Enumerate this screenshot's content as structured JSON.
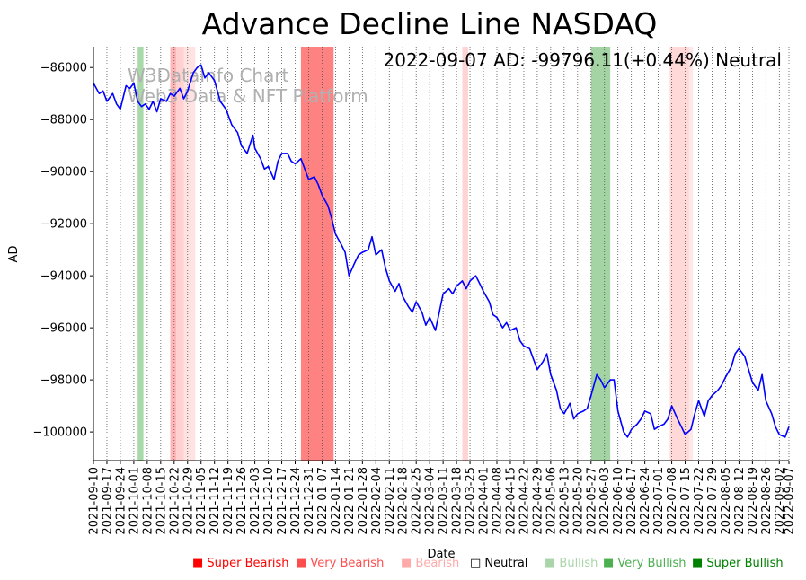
{
  "chart_data": {
    "type": "line",
    "title": "Advance Decline Line NASDAQ",
    "status_text": "2022-09-07 AD: -99796.11(+0.44%) Neutral",
    "watermark": [
      "W3DataInfo Chart",
      "Web3 Data & NFT Platform"
    ],
    "xlabel": "Date",
    "ylabel": "AD",
    "ylim": [
      -101100,
      -85200
    ],
    "yticks": [
      -86000,
      -88000,
      -90000,
      -92000,
      -94000,
      -96000,
      -98000,
      -100000
    ],
    "ytick_labels": [
      "−86000",
      "−88000",
      "−90000",
      "−92000",
      "−94000",
      "−96000",
      "−98000",
      "−100000"
    ],
    "x_start": "2021-09-10",
    "x_end": "2022-09-07",
    "xtick_labels": [
      "2021-09-10",
      "2021-09-17",
      "2021-09-24",
      "2021-10-01",
      "2021-10-08",
      "2021-10-15",
      "2021-10-22",
      "2021-10-29",
      "2021-11-05",
      "2021-11-12",
      "2021-11-19",
      "2021-11-26",
      "2021-12-03",
      "2021-12-10",
      "2021-12-17",
      "2021-12-24",
      "2021-12-31",
      "2022-01-07",
      "2022-01-14",
      "2022-01-21",
      "2022-01-28",
      "2022-02-04",
      "2022-02-11",
      "2022-02-18",
      "2022-02-25",
      "2022-03-04",
      "2022-03-11",
      "2022-03-18",
      "2022-03-25",
      "2022-04-01",
      "2022-04-08",
      "2022-04-15",
      "2022-04-22",
      "2022-04-29",
      "2022-05-06",
      "2022-05-13",
      "2022-05-20",
      "2022-05-27",
      "2022-06-03",
      "2022-06-10",
      "2022-06-17",
      "2022-06-24",
      "2022-07-01",
      "2022-07-08",
      "2022-07-15",
      "2022-07-22",
      "2022-07-29",
      "2022-08-05",
      "2022-08-12",
      "2022-08-19",
      "2022-08-26",
      "2022-09-02",
      "2022-09-07"
    ],
    "grid": "vertical dotted",
    "series": [
      {
        "name": "AD",
        "color": "#0000ff",
        "points": [
          [
            "2021-09-10",
            -86600
          ],
          [
            "2021-09-13",
            -87000
          ],
          [
            "2021-09-15",
            -86900
          ],
          [
            "2021-09-17",
            -87300
          ],
          [
            "2021-09-20",
            -87000
          ],
          [
            "2021-09-22",
            -87400
          ],
          [
            "2021-09-24",
            -87600
          ],
          [
            "2021-09-27",
            -86700
          ],
          [
            "2021-09-29",
            -86800
          ],
          [
            "2021-10-01",
            -86600
          ],
          [
            "2021-10-03",
            -87300
          ],
          [
            "2021-10-05",
            -87500
          ],
          [
            "2021-10-07",
            -87400
          ],
          [
            "2021-10-09",
            -87600
          ],
          [
            "2021-10-11",
            -87300
          ],
          [
            "2021-10-13",
            -87700
          ],
          [
            "2021-10-15",
            -87200
          ],
          [
            "2021-10-18",
            -87300
          ],
          [
            "2021-10-20",
            -87000
          ],
          [
            "2021-10-22",
            -87100
          ],
          [
            "2021-10-25",
            -86800
          ],
          [
            "2021-10-27",
            -87200
          ],
          [
            "2021-10-29",
            -86900
          ],
          [
            "2021-11-01",
            -86200
          ],
          [
            "2021-11-03",
            -86000
          ],
          [
            "2021-11-05",
            -85900
          ],
          [
            "2021-11-07",
            -86400
          ],
          [
            "2021-11-09",
            -86200
          ],
          [
            "2021-11-12",
            -86500
          ],
          [
            "2021-11-15",
            -87300
          ],
          [
            "2021-11-18",
            -87600
          ],
          [
            "2021-11-21",
            -88200
          ],
          [
            "2021-11-24",
            -88500
          ],
          [
            "2021-11-26",
            -89000
          ],
          [
            "2021-11-29",
            -89300
          ],
          [
            "2021-12-02",
            -88600
          ],
          [
            "2021-12-03",
            -89100
          ],
          [
            "2021-12-06",
            -89500
          ],
          [
            "2021-12-08",
            -89900
          ],
          [
            "2021-12-10",
            -89800
          ],
          [
            "2021-12-13",
            -90300
          ],
          [
            "2021-12-15",
            -89600
          ],
          [
            "2021-12-17",
            -89300
          ],
          [
            "2021-12-20",
            -89300
          ],
          [
            "2021-12-22",
            -89600
          ],
          [
            "2021-12-24",
            -89700
          ],
          [
            "2021-12-27",
            -89500
          ],
          [
            "2021-12-29",
            -89900
          ],
          [
            "2021-12-31",
            -90300
          ],
          [
            "2022-01-03",
            -90200
          ],
          [
            "2022-01-05",
            -90500
          ],
          [
            "2022-01-07",
            -90900
          ],
          [
            "2022-01-10",
            -91300
          ],
          [
            "2022-01-12",
            -91800
          ],
          [
            "2022-01-14",
            -92400
          ],
          [
            "2022-01-17",
            -92800
          ],
          [
            "2022-01-19",
            -93100
          ],
          [
            "2022-01-21",
            -94000
          ],
          [
            "2022-01-24",
            -93500
          ],
          [
            "2022-01-26",
            -93200
          ],
          [
            "2022-01-28",
            -93100
          ],
          [
            "2022-01-31",
            -93000
          ],
          [
            "2022-02-02",
            -92500
          ],
          [
            "2022-02-04",
            -93200
          ],
          [
            "2022-02-07",
            -93000
          ],
          [
            "2022-02-09",
            -93700
          ],
          [
            "2022-02-11",
            -94200
          ],
          [
            "2022-02-14",
            -94600
          ],
          [
            "2022-02-16",
            -94300
          ],
          [
            "2022-02-18",
            -94800
          ],
          [
            "2022-02-21",
            -95200
          ],
          [
            "2022-02-23",
            -95400
          ],
          [
            "2022-02-25",
            -95000
          ],
          [
            "2022-02-28",
            -95400
          ],
          [
            "2022-03-02",
            -95900
          ],
          [
            "2022-03-04",
            -95600
          ],
          [
            "2022-03-07",
            -96100
          ],
          [
            "2022-03-09",
            -95400
          ],
          [
            "2022-03-11",
            -94700
          ],
          [
            "2022-03-14",
            -94500
          ],
          [
            "2022-03-16",
            -94700
          ],
          [
            "2022-03-18",
            -94400
          ],
          [
            "2022-03-21",
            -94200
          ],
          [
            "2022-03-23",
            -94500
          ],
          [
            "2022-03-25",
            -94200
          ],
          [
            "2022-03-28",
            -94000
          ],
          [
            "2022-03-30",
            -94300
          ],
          [
            "2022-04-01",
            -94600
          ],
          [
            "2022-04-04",
            -95000
          ],
          [
            "2022-04-06",
            -95500
          ],
          [
            "2022-04-08",
            -95600
          ],
          [
            "2022-04-11",
            -96000
          ],
          [
            "2022-04-13",
            -95800
          ],
          [
            "2022-04-15",
            -96100
          ],
          [
            "2022-04-18",
            -96000
          ],
          [
            "2022-04-20",
            -96500
          ],
          [
            "2022-04-22",
            -96700
          ],
          [
            "2022-04-25",
            -96800
          ],
          [
            "2022-04-27",
            -97200
          ],
          [
            "2022-04-29",
            -97600
          ],
          [
            "2022-05-02",
            -97300
          ],
          [
            "2022-05-04",
            -97000
          ],
          [
            "2022-05-06",
            -97800
          ],
          [
            "2022-05-09",
            -98400
          ],
          [
            "2022-05-11",
            -99100
          ],
          [
            "2022-05-13",
            -99300
          ],
          [
            "2022-05-16",
            -98900
          ],
          [
            "2022-05-18",
            -99500
          ],
          [
            "2022-05-20",
            -99300
          ],
          [
            "2022-05-23",
            -99200
          ],
          [
            "2022-05-25",
            -99100
          ],
          [
            "2022-05-27",
            -98600
          ],
          [
            "2022-05-30",
            -97800
          ],
          [
            "2022-06-01",
            -98000
          ],
          [
            "2022-06-03",
            -98300
          ],
          [
            "2022-06-06",
            -98000
          ],
          [
            "2022-06-08",
            -98000
          ],
          [
            "2022-06-10",
            -99200
          ],
          [
            "2022-06-13",
            -100000
          ],
          [
            "2022-06-15",
            -100200
          ],
          [
            "2022-06-17",
            -99900
          ],
          [
            "2022-06-20",
            -99700
          ],
          [
            "2022-06-22",
            -99500
          ],
          [
            "2022-06-24",
            -99200
          ],
          [
            "2022-06-27",
            -99300
          ],
          [
            "2022-06-29",
            -99900
          ],
          [
            "2022-07-01",
            -99800
          ],
          [
            "2022-07-04",
            -99700
          ],
          [
            "2022-07-06",
            -99500
          ],
          [
            "2022-07-08",
            -99000
          ],
          [
            "2022-07-11",
            -99500
          ],
          [
            "2022-07-13",
            -99800
          ],
          [
            "2022-07-15",
            -100100
          ],
          [
            "2022-07-18",
            -99900
          ],
          [
            "2022-07-20",
            -99300
          ],
          [
            "2022-07-22",
            -98800
          ],
          [
            "2022-07-25",
            -99400
          ],
          [
            "2022-07-27",
            -98800
          ],
          [
            "2022-07-29",
            -98600
          ],
          [
            "2022-08-01",
            -98400
          ],
          [
            "2022-08-03",
            -98200
          ],
          [
            "2022-08-05",
            -97900
          ],
          [
            "2022-08-08",
            -97500
          ],
          [
            "2022-08-10",
            -97000
          ],
          [
            "2022-08-12",
            -96800
          ],
          [
            "2022-08-15",
            -97100
          ],
          [
            "2022-08-17",
            -97600
          ],
          [
            "2022-08-19",
            -98100
          ],
          [
            "2022-08-22",
            -98400
          ],
          [
            "2022-08-24",
            -97800
          ],
          [
            "2022-08-26",
            -98800
          ],
          [
            "2022-08-29",
            -99300
          ],
          [
            "2022-08-31",
            -99800
          ],
          [
            "2022-09-02",
            -100100
          ],
          [
            "2022-09-05",
            -100200
          ],
          [
            "2022-09-07",
            -99800
          ]
        ]
      }
    ],
    "regions": [
      {
        "start": "2021-10-03",
        "end": "2021-10-06",
        "class": "Bullish",
        "color": "#62b862",
        "opacity": 0.55
      },
      {
        "start": "2021-10-20",
        "end": "2021-10-23",
        "class": "Very Bearish",
        "color": "#ff6b6b",
        "opacity": 0.5
      },
      {
        "start": "2021-10-23",
        "end": "2021-10-27",
        "class": "Bearish",
        "color": "#ff9a9a",
        "opacity": 0.45
      },
      {
        "start": "2021-10-27",
        "end": "2021-11-02",
        "class": "Bearish",
        "color": "#ffb8b8",
        "opacity": 0.4
      },
      {
        "start": "2021-12-27",
        "end": "2022-01-13",
        "class": "Super Bearish",
        "color": "#ff4d4d",
        "opacity": 0.7
      },
      {
        "start": "2022-03-21",
        "end": "2022-03-24",
        "class": "Bearish",
        "color": "#ffb0b0",
        "opacity": 0.55
      },
      {
        "start": "2022-05-27",
        "end": "2022-06-06",
        "class": "Very Bullish",
        "color": "#4aa84a",
        "opacity": 0.5
      },
      {
        "start": "2022-07-07",
        "end": "2022-07-17",
        "class": "Bearish",
        "color": "#ffb8b8",
        "opacity": 0.55
      },
      {
        "start": "2022-07-17",
        "end": "2022-07-19",
        "class": "Bearish",
        "color": "#ffd0d0",
        "opacity": 0.5
      }
    ]
  },
  "legend": [
    {
      "marker": "■",
      "label": "Super Bearish",
      "color": "#ff0000"
    },
    {
      "marker": "■",
      "label": "Very Bearish",
      "color": "#ff4d4d"
    },
    {
      "marker": "■",
      "label": "Bearish",
      "color": "#ffaaaa"
    },
    {
      "marker": "□",
      "label": "Neutral",
      "color": "#000000"
    },
    {
      "marker": "■",
      "label": "Bullish",
      "color": "#aad4aa"
    },
    {
      "marker": "■",
      "label": "Very Bullish",
      "color": "#4caf50"
    },
    {
      "marker": "■",
      "label": "Super Bullish",
      "color": "#008000"
    }
  ]
}
